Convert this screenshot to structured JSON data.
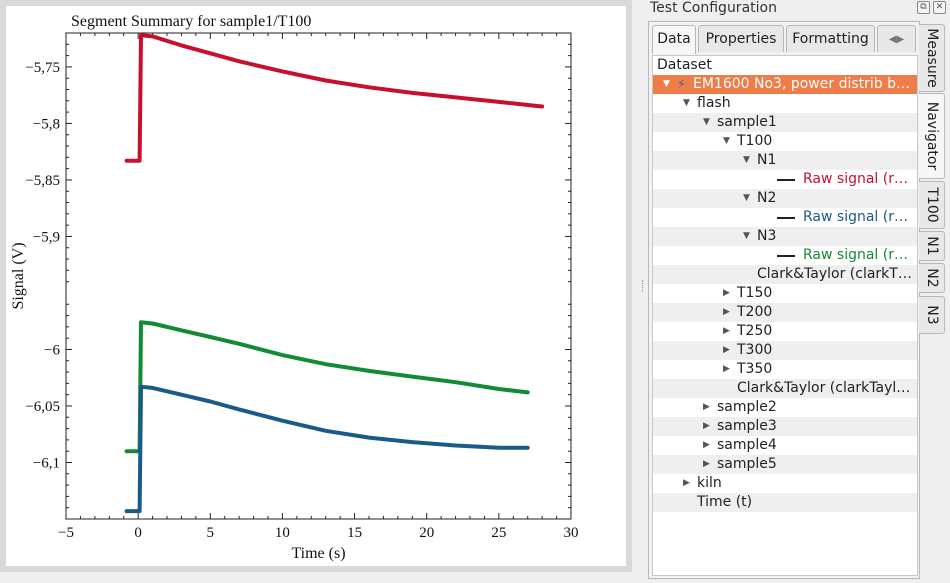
{
  "plot": {
    "title": "Segment Summary for sample1/T100",
    "chart_data": {
      "type": "line",
      "title": "Segment Summary for sample1/T100",
      "xlabel": "Time (s)",
      "ylabel": "Signal (V)",
      "xlim": [
        -5,
        30
      ],
      "ylim": [
        -6.15,
        -5.72
      ],
      "xticks": [
        "−5",
        "0",
        "5",
        "10",
        "15",
        "20",
        "25",
        "30"
      ],
      "yticks": [
        "−5,75",
        "−5,8",
        "−5,85",
        "−5,9",
        "−6",
        "−6,05",
        "−6,1"
      ],
      "yticks_values": [
        -5.75,
        -5.8,
        -5.85,
        -5.9,
        -6.0,
        -6.05,
        -6.1
      ],
      "grid": false,
      "series": [
        {
          "color": "#c8102e",
          "x": [
            -0.8,
            0.1,
            0.2,
            1,
            3,
            5,
            7,
            10,
            13,
            16,
            19,
            22,
            25,
            28
          ],
          "y": [
            -5.833,
            -5.833,
            -5.722,
            -5.723,
            -5.731,
            -5.738,
            -5.745,
            -5.754,
            -5.762,
            -5.768,
            -5.773,
            -5.777,
            -5.781,
            -5.785
          ]
        },
        {
          "color": "#138a36",
          "x": [
            -0.8,
            0.1,
            0.2,
            1,
            3,
            5,
            7,
            10,
            13,
            16,
            19,
            22,
            25,
            27
          ],
          "y": [
            -6.09,
            -6.09,
            -5.976,
            -5.977,
            -5.983,
            -5.989,
            -5.995,
            -6.005,
            -6.013,
            -6.019,
            -6.024,
            -6.029,
            -6.035,
            -6.038
          ]
        },
        {
          "color": "#1a5a8a",
          "x": [
            -0.8,
            0.1,
            0.2,
            1,
            3,
            5,
            7,
            10,
            13,
            16,
            19,
            22,
            25,
            27
          ],
          "y": [
            -6.143,
            -6.143,
            -6.033,
            -6.034,
            -6.04,
            -6.046,
            -6.053,
            -6.063,
            -6.072,
            -6.078,
            -6.082,
            -6.085,
            -6.087,
            -6.087
          ]
        }
      ]
    }
  },
  "dock": {
    "title": "Test Configuration"
  },
  "tabs": [
    "Data",
    "Properties",
    "Formatting"
  ],
  "side_tabs": [
    "Measure",
    "Navigator",
    "T100",
    "N1",
    "N2",
    "N3"
  ],
  "tree": [
    {
      "label": "Dataset",
      "indent": 0,
      "arrow": "",
      "kind": "header"
    },
    {
      "label": "EM1600 No3, power distrib b…",
      "indent": 1,
      "arrow": "▼",
      "kind": "selected"
    },
    {
      "label": "flash",
      "indent": 2,
      "arrow": "▼"
    },
    {
      "label": "sample1",
      "indent": 3,
      "arrow": "▼"
    },
    {
      "label": "T100",
      "indent": 4,
      "arrow": "▼"
    },
    {
      "label": "N1",
      "indent": 5,
      "arrow": "▼"
    },
    {
      "label": "Raw signal (r…",
      "indent": 6,
      "arrow": "",
      "kind": "signal",
      "color": "#c8102e"
    },
    {
      "label": "N2",
      "indent": 5,
      "arrow": "▼"
    },
    {
      "label": "Raw signal (r…",
      "indent": 6,
      "arrow": "",
      "kind": "signal",
      "color": "#1a5a8a"
    },
    {
      "label": "N3",
      "indent": 5,
      "arrow": "▼"
    },
    {
      "label": "Raw signal (r…",
      "indent": 6,
      "arrow": "",
      "kind": "signal",
      "color": "#138a36"
    },
    {
      "label": "Clark&Taylor (clarkT…",
      "indent": 5,
      "arrow": "",
      "kind": "plain"
    },
    {
      "label": "T150",
      "indent": 4,
      "arrow": "▶"
    },
    {
      "label": "T200",
      "indent": 4,
      "arrow": "▶"
    },
    {
      "label": "T250",
      "indent": 4,
      "arrow": "▶"
    },
    {
      "label": "T300",
      "indent": 4,
      "arrow": "▶"
    },
    {
      "label": "T350",
      "indent": 4,
      "arrow": "▶"
    },
    {
      "label": "Clark&Taylor (clarkTayl…",
      "indent": 4,
      "arrow": "",
      "kind": "plain"
    },
    {
      "label": "sample2",
      "indent": 3,
      "arrow": "▶"
    },
    {
      "label": "sample3",
      "indent": 3,
      "arrow": "▶"
    },
    {
      "label": "sample4",
      "indent": 3,
      "arrow": "▶"
    },
    {
      "label": "sample5",
      "indent": 3,
      "arrow": "▶"
    },
    {
      "label": "kiln",
      "indent": 2,
      "arrow": "▶"
    },
    {
      "label": "Time (t)",
      "indent": 2,
      "arrow": "",
      "kind": "plain"
    }
  ]
}
